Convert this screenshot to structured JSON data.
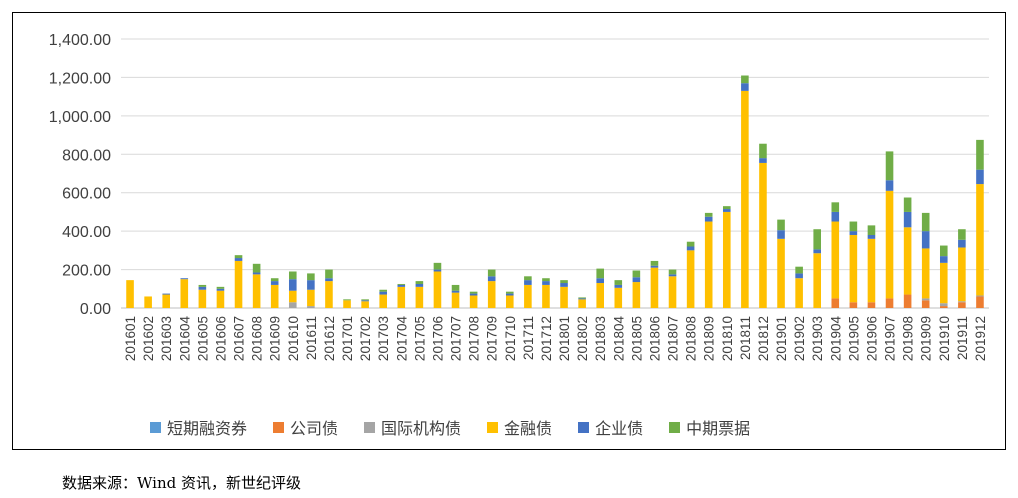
{
  "chart_data": {
    "type": "bar",
    "stacked": true,
    "title": "",
    "xlabel": "",
    "ylabel": "",
    "ylim": [
      0,
      1400
    ],
    "yticks": [
      "0.00",
      "200.00",
      "400.00",
      "600.00",
      "800.00",
      "1,000.00",
      "1,200.00",
      "1,400.00"
    ],
    "grid": true,
    "legend_position": "bottom",
    "categories": [
      "201601",
      "201602",
      "201603",
      "201604",
      "201605",
      "201606",
      "201607",
      "201608",
      "201609",
      "201610",
      "201611",
      "201612",
      "201701",
      "201702",
      "201703",
      "201704",
      "201705",
      "201706",
      "201707",
      "201708",
      "201709",
      "201710",
      "201711",
      "201712",
      "201801",
      "201802",
      "201803",
      "201804",
      "201805",
      "201806",
      "201807",
      "201808",
      "201809",
      "201810",
      "201811",
      "201812",
      "201901",
      "201902",
      "201903",
      "201904",
      "201905",
      "201906",
      "201907",
      "201908",
      "201909",
      "201910",
      "201911",
      "201912"
    ],
    "series": [
      {
        "name": "短期融资券",
        "color": "#5b9bd5",
        "values": [
          0,
          0,
          0,
          0,
          0,
          0,
          0,
          0,
          0,
          0,
          0,
          0,
          0,
          0,
          0,
          0,
          0,
          0,
          0,
          0,
          0,
          0,
          0,
          0,
          0,
          0,
          0,
          0,
          0,
          0,
          0,
          0,
          0,
          0,
          0,
          0,
          0,
          0,
          0,
          0,
          0,
          0,
          0,
          0,
          0,
          0,
          0,
          0
        ]
      },
      {
        "name": "公司债",
        "color": "#ed7d31",
        "values": [
          0,
          0,
          0,
          0,
          0,
          0,
          0,
          0,
          0,
          0,
          0,
          0,
          0,
          0,
          0,
          0,
          0,
          0,
          0,
          0,
          0,
          0,
          0,
          0,
          0,
          0,
          0,
          0,
          0,
          0,
          0,
          0,
          0,
          0,
          0,
          0,
          0,
          0,
          0,
          50,
          30,
          30,
          50,
          70,
          40,
          10,
          30,
          60
        ]
      },
      {
        "name": "国际机构债",
        "color": "#a5a5a5",
        "values": [
          0,
          0,
          0,
          0,
          0,
          0,
          0,
          0,
          0,
          30,
          10,
          0,
          0,
          0,
          0,
          0,
          0,
          0,
          0,
          0,
          0,
          0,
          0,
          0,
          0,
          0,
          0,
          0,
          0,
          0,
          0,
          0,
          0,
          0,
          0,
          0,
          0,
          0,
          0,
          0,
          0,
          0,
          0,
          0,
          10,
          15,
          5,
          5
        ]
      },
      {
        "name": "金融债",
        "color": "#ffc000",
        "values": [
          145,
          60,
          70,
          150,
          95,
          90,
          245,
          175,
          120,
          60,
          85,
          140,
          40,
          35,
          70,
          110,
          110,
          190,
          80,
          65,
          140,
          65,
          120,
          120,
          110,
          45,
          130,
          105,
          135,
          210,
          165,
          300,
          450,
          500,
          1130,
          755,
          360,
          155,
          285,
          400,
          350,
          330,
          560,
          350,
          260,
          210,
          280,
          580
        ]
      },
      {
        "name": "企业债",
        "color": "#4472c4",
        "values": [
          0,
          0,
          5,
          5,
          15,
          10,
          15,
          10,
          20,
          60,
          50,
          15,
          0,
          5,
          15,
          10,
          15,
          10,
          10,
          10,
          25,
          10,
          25,
          20,
          20,
          5,
          25,
          15,
          25,
          10,
          10,
          20,
          25,
          15,
          40,
          25,
          45,
          25,
          20,
          50,
          20,
          20,
          55,
          80,
          90,
          35,
          40,
          75
        ]
      },
      {
        "name": "中期票据",
        "color": "#70ad47",
        "values": [
          0,
          0,
          0,
          0,
          10,
          10,
          15,
          45,
          15,
          40,
          35,
          45,
          5,
          5,
          10,
          5,
          15,
          35,
          30,
          10,
          35,
          10,
          20,
          15,
          15,
          5,
          50,
          25,
          35,
          25,
          25,
          25,
          20,
          15,
          40,
          75,
          55,
          35,
          105,
          50,
          50,
          50,
          150,
          75,
          95,
          55,
          55,
          155
        ]
      }
    ]
  },
  "source_note": "数据来源：Wind 资讯，新世纪评级"
}
